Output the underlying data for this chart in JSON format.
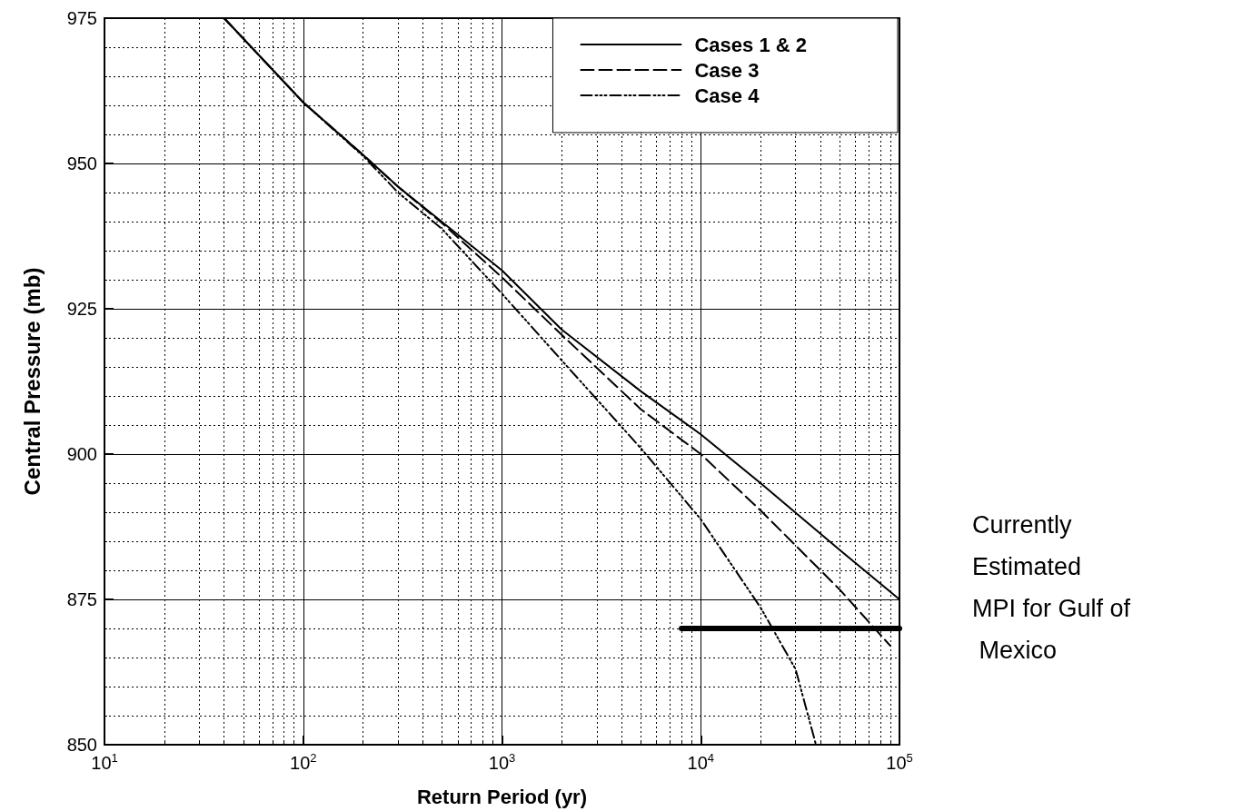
{
  "chart_data": {
    "type": "line",
    "xlabel": "Return Period (yr)",
    "ylabel": "Central Pressure (mb)",
    "log": "x",
    "grid": true,
    "legend": "top right",
    "xlim": [
      10,
      100000
    ],
    "ylim": [
      850,
      975
    ],
    "xticks": [
      {
        "value": 10,
        "label": "10$^{1}$"
      },
      {
        "value": 100,
        "label": "10$^{2}$"
      },
      {
        "value": 1000,
        "label": "10$^{3}$"
      },
      {
        "value": 10000,
        "label": "10$^{4}$"
      },
      {
        "value": 100000,
        "label": "10$^{5}$"
      }
    ],
    "yticks": [
      850,
      875,
      900,
      925,
      950,
      975
    ],
    "series": [
      {
        "name": "Cases 1 & 2",
        "color": "#000000",
        "line_style": "solid",
        "x": [
          40,
          100,
          200,
          300,
          497,
          1000,
          2000,
          5000,
          10000,
          20000,
          50000,
          100000
        ],
        "values": [
          975,
          960.5,
          951.5,
          946,
          940,
          931.6,
          921.4,
          910.8,
          903.4,
          895,
          883.5,
          875
        ]
      },
      {
        "name": "Case 3",
        "color": "#000000",
        "line_style": "dashed",
        "x": [
          40,
          100,
          200,
          300,
          497,
          1000,
          2000,
          5000,
          10000,
          20000,
          50000,
          90000
        ],
        "values": [
          975,
          960.5,
          951.5,
          946,
          939.8,
          930.4,
          920.5,
          907.7,
          900,
          890.3,
          876.7,
          867
        ]
      },
      {
        "name": "Case 4",
        "color": "#000000",
        "line_style": "dashdot",
        "x": [
          40,
          100,
          200,
          300,
          497,
          1000,
          2000,
          5000,
          10000,
          20000,
          30000,
          38000
        ],
        "values": [
          975,
          960.5,
          951.3,
          945,
          938.8,
          927.6,
          916.1,
          901,
          888.8,
          873.6,
          863,
          850
        ]
      },
      {
        "color": "#000000",
        "line_style": "solid",
        "x": [
          8000,
          100000
        ],
        "values": [
          870,
          870
        ]
      }
    ],
    "annotations": [
      "Currently Estimated MPI for Gulf of Mexico"
    ]
  }
}
